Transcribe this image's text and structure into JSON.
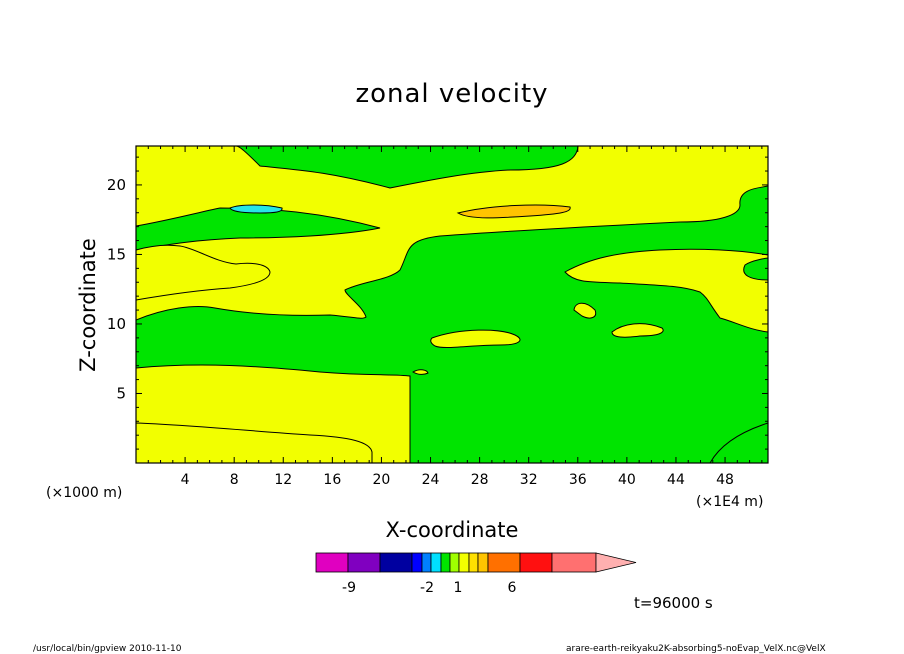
{
  "chart_data": {
    "type": "contour",
    "title": "zonal velocity",
    "xlabel": "X-coordinate",
    "ylabel": "Z-coordinate",
    "x_unit": "(×1000 m)",
    "x_scale_note": "(×1E4 m)",
    "xlim": [
      0,
      51.5
    ],
    "ylim": [
      0,
      22.8
    ],
    "x_ticks": [
      "4",
      "8",
      "12",
      "16",
      "20",
      "24",
      "28",
      "32",
      "36",
      "40",
      "44",
      "48"
    ],
    "y_ticks": [
      "5",
      "10",
      "15",
      "20"
    ],
    "fill_colors": {
      "negative_small": "#00e400",
      "positive_small": "#f2ff00",
      "positive_mid": "#ffc400",
      "negative_mid": "#26e6e6"
    },
    "colorbar": {
      "colors": [
        "#e000c0",
        "#8000c0",
        "#0000a0",
        "#0000ff",
        "#0080ff",
        "#00e0ff",
        "#00e400",
        "#a0ff00",
        "#f2ff00",
        "#ffe000",
        "#ffc400",
        "#ff7000",
        "#ff1010",
        "#ff7070",
        "#ffb0b0"
      ],
      "labels": [
        "-9",
        "-2",
        "1",
        "6"
      ],
      "label_color_index": [
        1,
        4,
        7,
        11
      ]
    },
    "time_label": "t=96000 s"
  },
  "footer": {
    "left": "/usr/local/bin/gpview   2010-11-10",
    "right": "arare-earth-reikyaku2K-absorbing5-noEvap_VelX.nc@VelX"
  }
}
